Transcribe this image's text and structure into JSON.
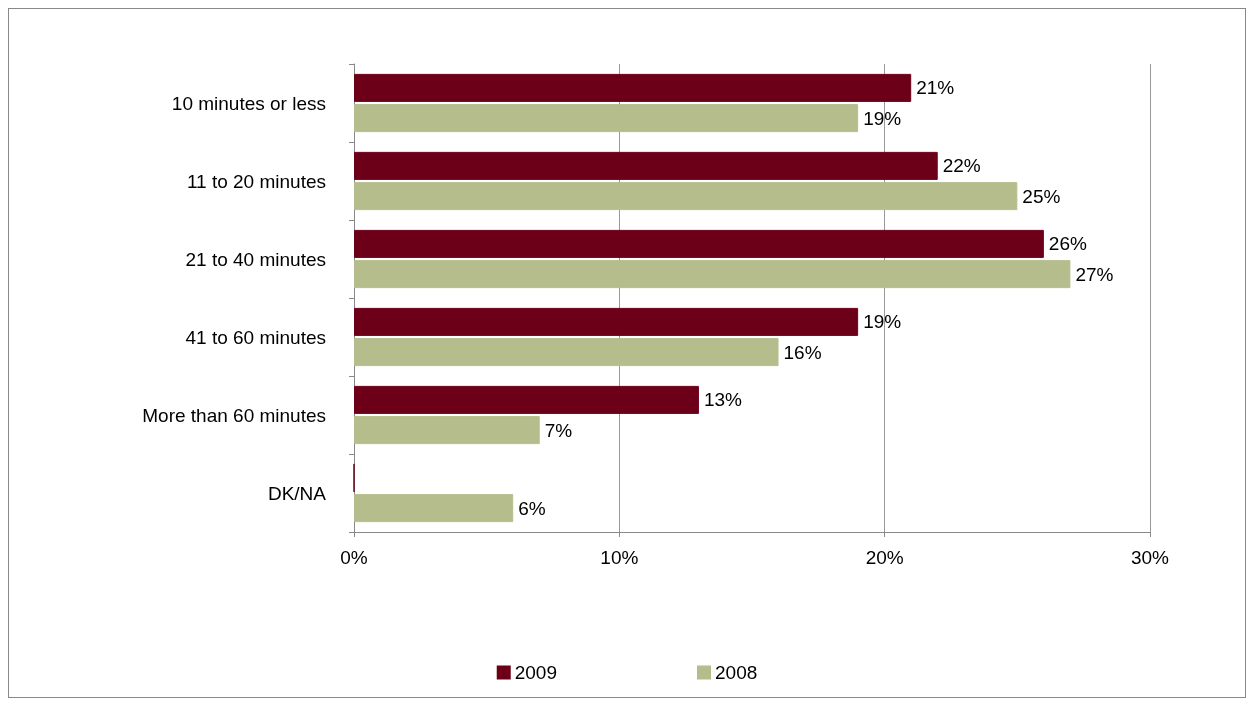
{
  "chart_data": {
    "type": "bar",
    "orientation": "horizontal",
    "categories": [
      "10 minutes or less",
      "11 to 20 minutes",
      "21 to 40 minutes",
      "41 to 60 minutes",
      "More than 60 minutes",
      "DK/NA"
    ],
    "series": [
      {
        "name": "2009",
        "color": "#6b0018",
        "values": [
          21,
          22,
          26,
          19,
          13,
          0
        ],
        "value_labels": [
          "21%",
          "22%",
          "26%",
          "19%",
          "13%",
          null
        ]
      },
      {
        "name": "2008",
        "color": "#b6bd8c",
        "values": [
          19,
          25,
          27,
          16,
          7,
          6
        ],
        "value_labels": [
          "19%",
          "25%",
          "27%",
          "16%",
          "7%",
          "6%"
        ]
      }
    ],
    "xlim": [
      0,
      30
    ],
    "xticks": [
      {
        "value": 0,
        "label": "0%"
      },
      {
        "value": 10,
        "label": "10%"
      },
      {
        "value": 20,
        "label": "20%"
      },
      {
        "value": 30,
        "label": "30%"
      }
    ],
    "grid": "x",
    "legend": "bottom"
  }
}
